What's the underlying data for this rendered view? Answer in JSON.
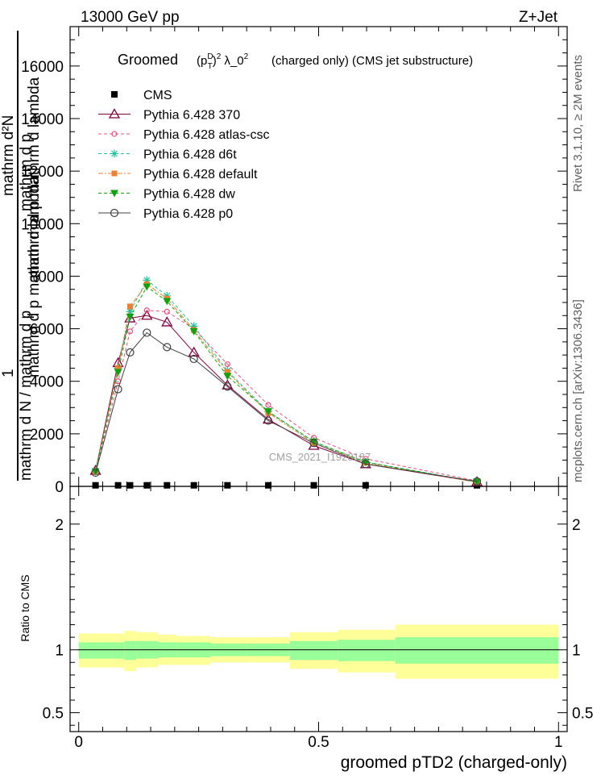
{
  "header": {
    "energy_label": "13000 GeV pp",
    "process_label": "Z+Jet",
    "title_prefix": "Groomed",
    "title_suffix": "(charged only) (CMS jet substructure)"
  },
  "side_labels": {
    "rivet": "Rivet 3.1.10, ≥ 2M events",
    "mcplots": "mcplots.cern.ch [arXiv:1306.3436]"
  },
  "watermark": "CMS_2021_I1920187",
  "ylabel_main_lines": [
    "mathrm d²N",
    "mathrm d p",
    "mathrm d p mathrm d lambda",
    "1",
    "mathrm d N / mathrm d p",
    "mathrm d p mathrm d lambda"
  ],
  "ratio_ylabel": "Ratio to CMS",
  "xlabel": "groomed pTD2 (charged-only)",
  "colors": {
    "CMS": "#000000",
    "p370": "#800040",
    "atlas": "#e8507a",
    "d6t": "#20c0a0",
    "default": "#f08030",
    "dw": "#10a010",
    "p0": "#404040",
    "band_inner": "#99ff99",
    "band_outer": "#ffff99"
  },
  "chart_data": [
    {
      "type": "line",
      "panel": "main",
      "xlim": [
        0,
        1
      ],
      "ylim": [
        0,
        17500
      ],
      "y_ticks": [
        0,
        2000,
        4000,
        6000,
        8000,
        10000,
        12000,
        14000,
        16000
      ],
      "y_tick_labels": [
        "0",
        "2000",
        "4000",
        "6000",
        "8000",
        "10000",
        "12000",
        "14000",
        "16000"
      ],
      "x_ticks": [
        0,
        0.5,
        1
      ],
      "x_tick_labels": [
        "0",
        "0.5",
        "1"
      ],
      "legend": "top-left",
      "x": [
        0.035,
        0.082,
        0.107,
        0.142,
        0.184,
        0.24,
        0.31,
        0.395,
        0.49,
        0.598,
        0.83
      ],
      "series": [
        {
          "name": "CMS",
          "key": "CMS",
          "marker": "square",
          "values": [
            40,
            40,
            40,
            40,
            40,
            40,
            40,
            40,
            40,
            40,
            40
          ]
        },
        {
          "name": "Pythia 6.428 370",
          "key": "p370",
          "marker": "triangle-open",
          "dash": "solid",
          "values": [
            600,
            4700,
            6400,
            6500,
            6250,
            5100,
            3850,
            2550,
            1550,
            850,
            170
          ]
        },
        {
          "name": "Pythia 6.428 atlas-csc",
          "key": "atlas",
          "marker": "circle-open-small",
          "dash": "4,3",
          "values": [
            560,
            4000,
            5900,
            6700,
            6650,
            6000,
            4650,
            3100,
            1850,
            1050,
            210
          ]
        },
        {
          "name": "Pythia 6.428 d6t",
          "key": "d6t",
          "marker": "star",
          "dash": "4,3",
          "values": [
            590,
            4500,
            6650,
            7850,
            7250,
            6100,
            4400,
            2850,
            1700,
            930,
            170
          ]
        },
        {
          "name": "Pythia 6.428 default",
          "key": "default",
          "marker": "square-small",
          "dash": "6,2,2,2",
          "values": [
            570,
            4500,
            6850,
            7700,
            7150,
            5950,
            4350,
            2800,
            1650,
            900,
            160
          ]
        },
        {
          "name": "Pythia 6.428 dw",
          "key": "dw",
          "marker": "triangle-down",
          "dash": "4,3",
          "values": [
            560,
            4350,
            6450,
            7600,
            7050,
            5900,
            4200,
            2850,
            1700,
            920,
            170
          ]
        },
        {
          "name": "Pythia 6.428 p0",
          "key": "p0",
          "marker": "circle-open",
          "dash": "solid",
          "values": [
            520,
            3700,
            5100,
            5850,
            5300,
            4850,
            3800,
            2500,
            1650,
            850,
            190
          ]
        }
      ]
    },
    {
      "type": "area",
      "panel": "ratio",
      "xlim": [
        0,
        1
      ],
      "ylim": [
        0.35,
        2.3
      ],
      "y_ticks": [
        0.5,
        1,
        2
      ],
      "y_tick_labels": [
        "0.5",
        "1",
        "2"
      ],
      "bin_edges": [
        0,
        0.07,
        0.095,
        0.12,
        0.165,
        0.205,
        0.275,
        0.35,
        0.44,
        0.54,
        0.66,
        1.0
      ],
      "inner_band_low": [
        0.93,
        0.93,
        0.92,
        0.93,
        0.94,
        0.94,
        0.95,
        0.95,
        0.92,
        0.91,
        0.89
      ],
      "inner_band_high": [
        1.06,
        1.06,
        1.07,
        1.07,
        1.06,
        1.06,
        1.05,
        1.05,
        1.07,
        1.08,
        1.1
      ],
      "outer_band_low": [
        0.86,
        0.86,
        0.83,
        0.86,
        0.88,
        0.88,
        0.9,
        0.9,
        0.85,
        0.82,
        0.77
      ],
      "outer_band_high": [
        1.13,
        1.13,
        1.15,
        1.14,
        1.12,
        1.11,
        1.1,
        1.1,
        1.14,
        1.16,
        1.2
      ]
    }
  ]
}
